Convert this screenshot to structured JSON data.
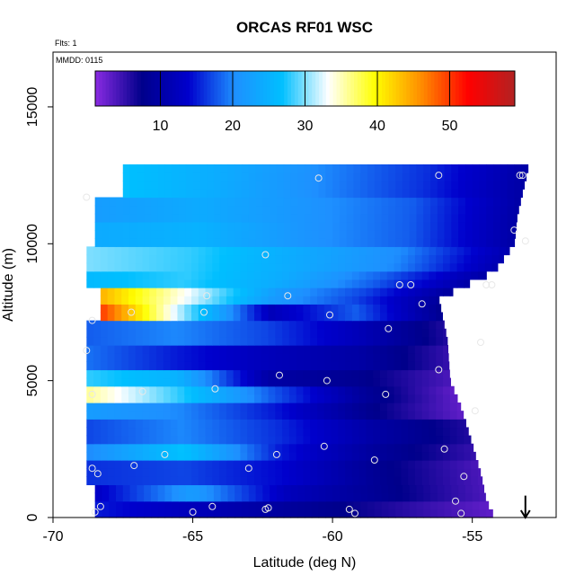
{
  "chart_data": {
    "type": "heatmap",
    "title": "ORCAS RF01 WSC",
    "annotations": {
      "flights": "Flts: 1",
      "date": "MMDD: 0115"
    },
    "xlabel": "Latitude (deg N)",
    "ylabel": "Altitude (m)",
    "xlim": [
      -70,
      -52
    ],
    "ylim": [
      0,
      17000
    ],
    "x_ticks": [
      -70,
      -65,
      -60,
      -55
    ],
    "x_tick_labels": [
      "-70",
      "-65",
      "-60",
      "-55"
    ],
    "y_ticks": [
      0,
      5000,
      10000,
      15000
    ],
    "y_tick_labels": [
      "0",
      "5000",
      "10000",
      "15000"
    ],
    "colorbar": {
      "min": 1,
      "max": 59,
      "ticks": [
        10,
        20,
        30,
        40,
        50
      ],
      "tick_labels": [
        "10",
        "20",
        "30",
        "40",
        "50"
      ],
      "colors": [
        "#8a2be2",
        "#00008b",
        "#0000cd",
        "#1e90ff",
        "#00bfff",
        "#ffffff",
        "#ffff00",
        "#ff8c00",
        "#ff0000",
        "#b22222"
      ]
    },
    "grid": false,
    "bands": [
      {
        "alt": 200,
        "lat_start": -68.5,
        "vals": [
          15,
          12,
          9,
          6,
          3
        ]
      },
      {
        "alt": 800,
        "lat_start": -68.5,
        "vals": [
          13,
          22,
          12,
          8,
          4
        ]
      },
      {
        "alt": 1600,
        "lat_start": -68.8,
        "vals": [
          16,
          17,
          14,
          8,
          4
        ]
      },
      {
        "alt": 2300,
        "lat_start": -68.8,
        "vals": [
          20,
          27,
          15,
          9,
          5
        ]
      },
      {
        "alt": 3200,
        "lat_start": -68.8,
        "vals": [
          17,
          20,
          16,
          10,
          6
        ]
      },
      {
        "alt": 4000,
        "lat_start": -68.8,
        "vals": [
          22,
          20,
          15,
          8,
          3
        ]
      },
      {
        "alt": 4600,
        "lat_start": -68.8,
        "vals": [
          36,
          28,
          18,
          9,
          3
        ]
      },
      {
        "alt": 5100,
        "lat_start": -68.8,
        "vals": [
          28,
          25,
          10,
          8,
          4
        ]
      },
      {
        "alt": 5800,
        "lat_start": -68.8,
        "vals": [
          19,
          15,
          12,
          10,
          5
        ]
      },
      {
        "alt": 6600,
        "lat_start": -68.8,
        "vals": [
          18,
          20,
          17,
          12,
          6
        ]
      },
      {
        "alt": 7500,
        "lat_start": -68.3,
        "vals": [
          50,
          30,
          12,
          18,
          8
        ]
      },
      {
        "alt": 8000,
        "lat_start": -68.3,
        "vals": [
          44,
          33,
          22,
          17,
          9
        ]
      },
      {
        "alt": 8600,
        "lat_start": -68.8,
        "vals": [
          26,
          28,
          24,
          18,
          10
        ]
      },
      {
        "alt": 9500,
        "lat_start": -68.8,
        "vals": [
          30,
          28,
          24,
          20,
          11
        ]
      },
      {
        "alt": 10500,
        "lat_start": -68.5,
        "vals": [
          24,
          25,
          21,
          18,
          10
        ]
      },
      {
        "alt": 11300,
        "lat_start": -68.5,
        "vals": [
          22,
          24,
          21,
          18,
          10
        ]
      },
      {
        "alt": 12000,
        "lat_start": -67.5,
        "vals": [
          27,
          24,
          20,
          16,
          10
        ]
      }
    ],
    "edge": [
      {
        "alt": 0,
        "lat": -54.2
      },
      {
        "alt": 600,
        "lat": -54.5
      },
      {
        "alt": 1600,
        "lat": -54.7
      },
      {
        "alt": 3000,
        "lat": -55.1
      },
      {
        "alt": 4000,
        "lat": -55.4
      },
      {
        "alt": 5000,
        "lat": -55.8
      },
      {
        "alt": 6500,
        "lat": -55.9
      },
      {
        "alt": 8000,
        "lat": -56.2
      },
      {
        "alt": 9000,
        "lat": -54.2
      },
      {
        "alt": 10000,
        "lat": -53.5
      },
      {
        "alt": 11000,
        "lat": -53.4
      },
      {
        "alt": 12800,
        "lat": -53.0
      }
    ],
    "samples": [
      [
        -68.5,
        200
      ],
      [
        -68.3,
        400
      ],
      [
        -68.4,
        1600
      ],
      [
        -68.6,
        1800
      ],
      [
        -67.1,
        1900
      ],
      [
        -66.0,
        2300
      ],
      [
        -65.0,
        200
      ],
      [
        -64.3,
        400
      ],
      [
        -63.0,
        1800
      ],
      [
        -62.0,
        2300
      ],
      [
        -62.4,
        300
      ],
      [
        -62.3,
        350
      ],
      [
        -60.3,
        2600
      ],
      [
        -59.4,
        300
      ],
      [
        -59.2,
        150
      ],
      [
        -58.5,
        2100
      ],
      [
        -56.0,
        2500
      ],
      [
        -55.3,
        1500
      ],
      [
        -55.6,
        600
      ],
      [
        -55.4,
        150
      ],
      [
        -54.9,
        3900
      ],
      [
        -54.7,
        6400
      ],
      [
        -56.2,
        5400
      ],
      [
        -58.1,
        4500
      ],
      [
        -60.2,
        5000
      ],
      [
        -61.9,
        5200
      ],
      [
        -64.2,
        4700
      ],
      [
        -66.8,
        4600
      ],
      [
        -68.6,
        4500
      ],
      [
        -68.8,
        6100
      ],
      [
        -68.6,
        7200
      ],
      [
        -67.2,
        7500
      ],
      [
        -64.6,
        7500
      ],
      [
        -61.6,
        8100
      ],
      [
        -60.1,
        7400
      ],
      [
        -58.0,
        6900
      ],
      [
        -56.8,
        7800
      ],
      [
        -57.6,
        8500
      ],
      [
        -57.2,
        8500
      ],
      [
        -54.5,
        8500
      ],
      [
        -54.3,
        8500
      ],
      [
        -53.1,
        10100
      ],
      [
        -53.5,
        10500
      ],
      [
        -62.4,
        9600
      ],
      [
        -60.5,
        12400
      ],
      [
        -56.2,
        12500
      ],
      [
        -53.3,
        12500
      ],
      [
        -53.2,
        12500
      ],
      [
        -68.8,
        11700
      ],
      [
        -64.5,
        8100
      ]
    ],
    "arrow": {
      "lat": -53.1,
      "alt_top": 800,
      "alt_bottom": 0,
      "direction": "down"
    }
  }
}
